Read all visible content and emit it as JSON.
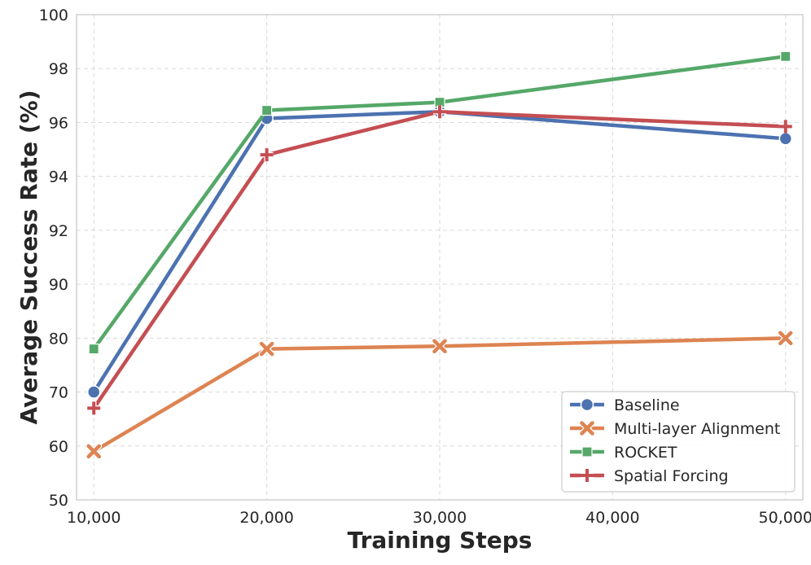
{
  "chart_data": {
    "type": "line",
    "xlabel": "Training Steps",
    "ylabel": "Average Success Rate (%)",
    "x": [
      10000,
      20000,
      30000,
      50000
    ],
    "x_ticks": [
      10000,
      20000,
      30000,
      40000,
      50000
    ],
    "x_tick_labels": [
      "10,000",
      "20,000",
      "30,000",
      "40,000",
      "50,000"
    ],
    "xlim": [
      9000,
      51000
    ],
    "y_scale": "piecewise-linear (50–90 compressed, 90–100 expanded)",
    "y_ticks": [
      50,
      60,
      70,
      80,
      90,
      92,
      94,
      96,
      98,
      100
    ],
    "y_tick_labels": [
      "50",
      "60",
      "70",
      "80",
      "90",
      "92",
      "94",
      "96",
      "98",
      "100"
    ],
    "ylim": [
      50,
      100
    ],
    "grid": true,
    "legend_position": "lower-right",
    "series": [
      {
        "name": "Baseline",
        "marker": "circle",
        "color": "#4c72b0",
        "values": [
          70.0,
          96.15,
          96.4,
          95.4
        ]
      },
      {
        "name": "Multi-layer Alignment",
        "marker": "x",
        "color": "#dd8452",
        "values": [
          59.0,
          78.0,
          78.5,
          80.0
        ]
      },
      {
        "name": "ROCKET",
        "marker": "square",
        "color": "#55a868",
        "values": [
          78.0,
          96.45,
          96.75,
          98.45
        ]
      },
      {
        "name": "Spatial Forcing",
        "marker": "plus",
        "color": "#c44e52",
        "values": [
          67.0,
          94.8,
          96.4,
          95.85
        ]
      }
    ]
  }
}
